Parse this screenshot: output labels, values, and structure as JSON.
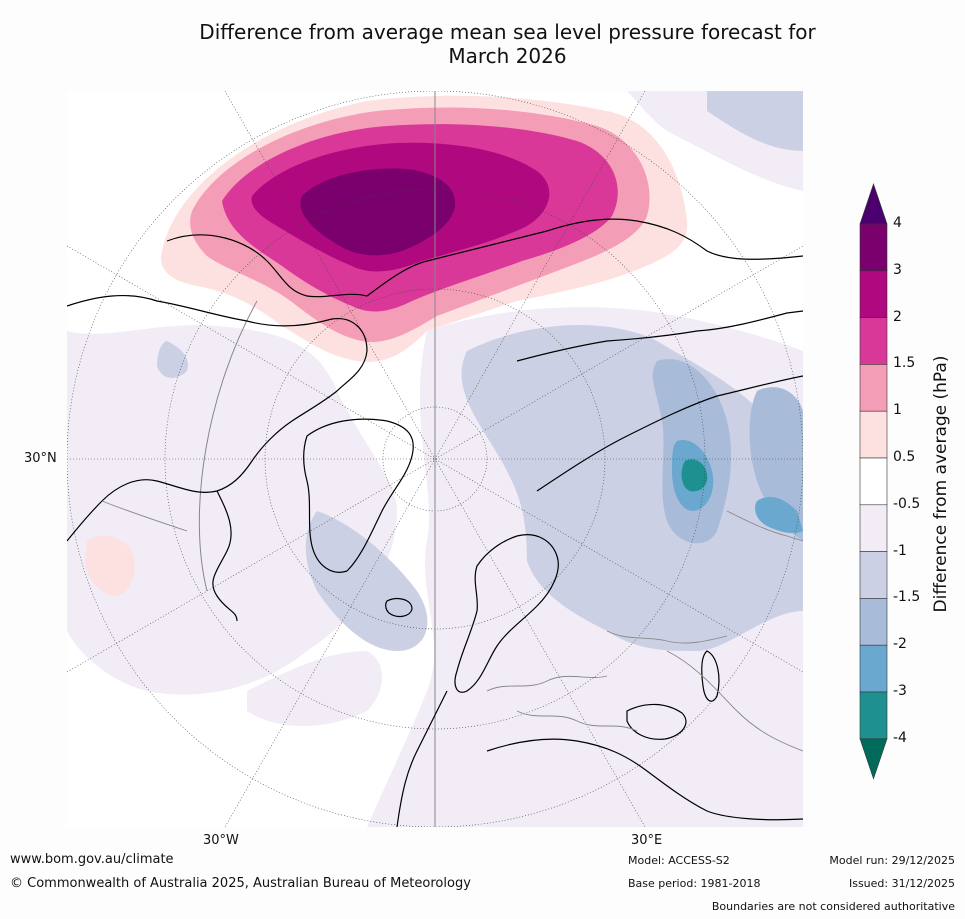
{
  "title_line1": "Difference from average mean sea level pressure forecast for",
  "title_line2": "March 2026",
  "map": {
    "lat_label": "30°N",
    "lon_labels": [
      "30°W",
      "30°E"
    ]
  },
  "colorbar": {
    "label": "Difference from average (hPa)",
    "ticks": [
      "4",
      "3",
      "2",
      "1.5",
      "1",
      "0.5",
      "-0.5",
      "-1",
      "-1.5",
      "-2",
      "-3",
      "-4"
    ],
    "colors": [
      "#4b006e",
      "#7a006e",
      "#b0087e",
      "#d93898",
      "#f49db7",
      "#fde1e1",
      "#ffffff",
      "#f1ecf5",
      "#ccd0e4",
      "#a8bcd9",
      "#6aa8cf",
      "#1f9090",
      "#006b5a"
    ]
  },
  "footer": {
    "website": "www.bom.gov.au/climate",
    "copyright": "© Commonwealth of Australia 2025, Australian Bureau of Meteorology",
    "model": "Model: ACCESS-S2",
    "base_period": "Base period: 1981-2018",
    "model_run": "Model run: 29/12/2025",
    "issued": "Issued: 31/12/2025",
    "disclaimer": "Boundaries are not considered authoritative"
  }
}
